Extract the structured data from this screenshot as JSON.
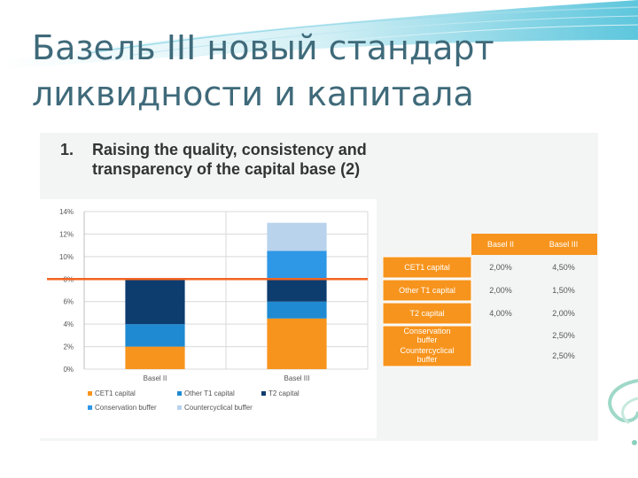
{
  "slide_title": {
    "line1": "Базель III новый стандарт",
    "line2": "ликвидности и капитала"
  },
  "heading": {
    "number": "1.",
    "line1": "Raising the quality, consistency and",
    "line2": "transparency of the capital base (2)"
  },
  "chart_data": {
    "type": "bar",
    "stacked": true,
    "categories": [
      "Basel II",
      "Basel III"
    ],
    "series": [
      {
        "name": "CET1 capital",
        "color": "#f7941d",
        "values": [
          2,
          4.5
        ]
      },
      {
        "name": "Other T1 capital",
        "color": "#1f8ad1",
        "values": [
          2,
          1.5
        ]
      },
      {
        "name": "T2 capital",
        "color": "#0d3c6e",
        "values": [
          4,
          2
        ]
      },
      {
        "name": "Conservation buffer",
        "color": "#2e97e6",
        "values": [
          0,
          2.5
        ]
      },
      {
        "name": "Countercyclical buffer",
        "color": "#b9d3ec",
        "values": [
          0,
          2.5
        ]
      }
    ],
    "reference_line": {
      "value": 8,
      "color": "#f26522"
    },
    "ylim": [
      0,
      14
    ],
    "yticks": [
      "0%",
      "2%",
      "4%",
      "6%",
      "8%",
      "10%",
      "12%",
      "14%"
    ],
    "grid": true,
    "legend_position": "bottom"
  },
  "table": {
    "columns": [
      "Basel II",
      "Basel III"
    ],
    "rows": [
      {
        "label": "CET1 capital",
        "values": [
          "2,00%",
          "4,50%"
        ]
      },
      {
        "label": "Other T1 capital",
        "values": [
          "2,00%",
          "1,50%"
        ]
      },
      {
        "label": "T2 capital",
        "values": [
          "4,00%",
          "2,00%"
        ]
      },
      {
        "label": "Conservation buffer",
        "values": [
          "",
          "2,50%"
        ]
      },
      {
        "label": "Countercyclical buffer",
        "values": [
          "",
          "2,50%"
        ]
      }
    ],
    "header_color": "#f7941d"
  }
}
